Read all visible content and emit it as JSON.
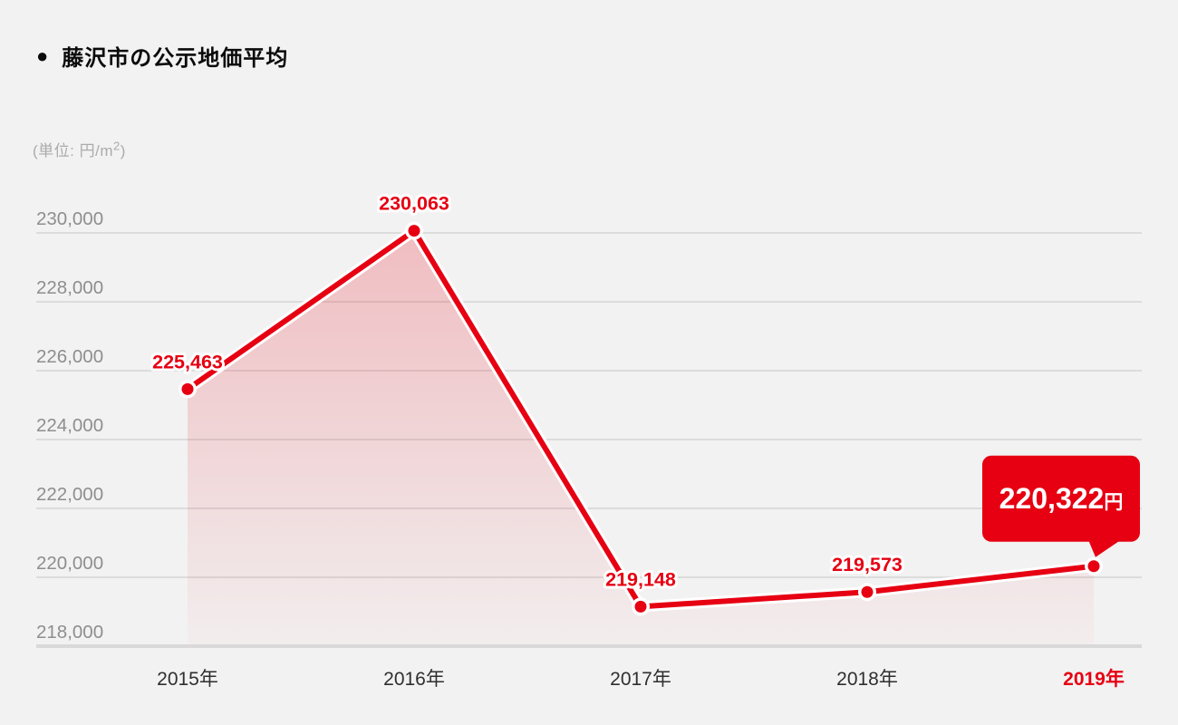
{
  "header": {
    "bullet": "●",
    "title": "藤沢市の公示地価平均"
  },
  "unit_label": {
    "prefix": "(単位: 円/m",
    "sup": "2",
    "suffix": ")"
  },
  "colors": {
    "background": "#f2f2f2",
    "accent_red": "#e60012",
    "gridline": "#dcdcdc",
    "baseline": "#d9d9d9",
    "y_tick_label": "#8e8e8e",
    "x_tick_label": "#2f2f2f",
    "halo_white": "#ffffff",
    "badge_text": "#ffffff"
  },
  "chart_data": {
    "type": "line",
    "title": "藤沢市の公示地価平均",
    "unit": "円/m2",
    "categories": [
      "2015年",
      "2016年",
      "2017年",
      "2018年",
      "2019年"
    ],
    "values": [
      225463,
      230063,
      219148,
      219573,
      220322
    ],
    "point_labels": [
      "225,463",
      "230,063",
      "219,148",
      "219,573",
      "220,322"
    ],
    "y_tick_values": [
      218000,
      220000,
      222000,
      224000,
      226000,
      228000,
      230000
    ],
    "y_tick_labels": [
      "218,000",
      "220,000",
      "222,000",
      "224,000",
      "226,000",
      "228,000",
      "230,000"
    ],
    "ylim": [
      218000,
      230000
    ],
    "grid": true,
    "legend": false,
    "area_fill": true,
    "highlight": {
      "index": 4,
      "badge_value": "220,322",
      "badge_unit": "円"
    }
  }
}
